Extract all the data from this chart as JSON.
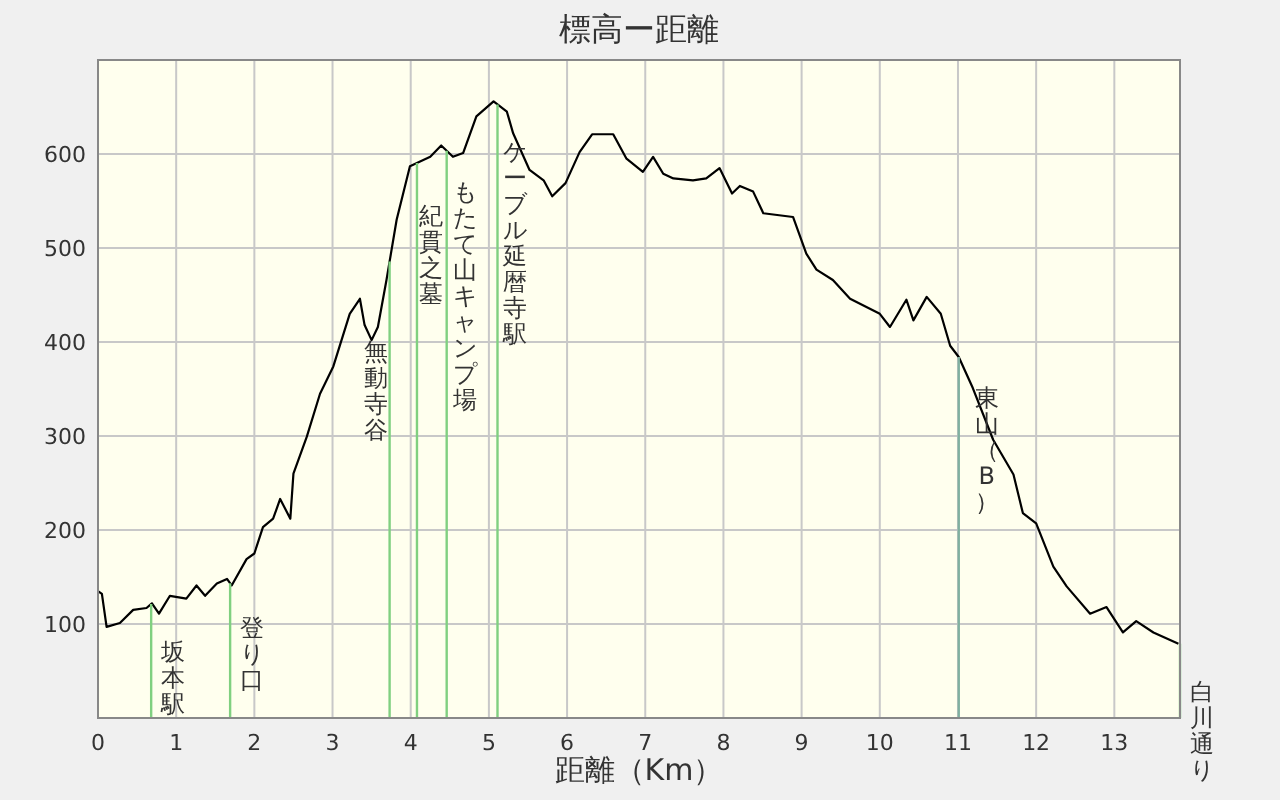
{
  "chart_data": {
    "type": "line",
    "title": "標高ー距離",
    "xlabel": "距離（Km）",
    "xlim": [
      0,
      13.84
    ],
    "ylim": [
      0,
      700
    ],
    "xticks": [
      0,
      1,
      2,
      3,
      4,
      5,
      6,
      7,
      8,
      9,
      10,
      11,
      12,
      13
    ],
    "yticks": [
      {
        "value": 0,
        "label": null
      },
      100,
      200,
      300,
      400,
      500,
      600
    ],
    "grid": true,
    "line_style": "solid",
    "series": [
      {
        "color": "#000000",
        "x": [
          0,
          0.05,
          0.11,
          0.28,
          0.45,
          0.62,
          0.69,
          0.78,
          0.92,
          1.13,
          1.26,
          1.37,
          1.52,
          1.65,
          1.71,
          1.9,
          2.0,
          2.11,
          2.24,
          2.33,
          2.46,
          2.5,
          2.67,
          2.84,
          3.01,
          3.22,
          3.35,
          3.41,
          3.5,
          3.58,
          3.69,
          3.82,
          3.99,
          4.12,
          4.25,
          4.39,
          4.54,
          4.67,
          4.84,
          5.06,
          5.23,
          5.31,
          5.52,
          5.7,
          5.81,
          5.98,
          6.16,
          6.32,
          6.59,
          6.76,
          6.97,
          7.1,
          7.23,
          7.36,
          7.61,
          7.78,
          7.95,
          8.11,
          8.21,
          8.38,
          8.51,
          8.89,
          9.06,
          9.19,
          9.4,
          9.62,
          10.0,
          10.13,
          10.34,
          10.43,
          10.6,
          10.78,
          10.9,
          11.01,
          11.19,
          11.45,
          11.71,
          11.83,
          12.0,
          12.22,
          12.39,
          12.69,
          12.9,
          13.11,
          13.28,
          13.5,
          13.82
        ],
        "values": [
          135,
          132,
          97,
          101,
          115,
          117,
          122,
          111,
          130,
          127,
          141,
          130,
          143,
          148,
          141,
          169,
          175,
          203,
          212,
          233,
          212,
          260,
          299,
          345,
          374,
          430,
          446,
          418,
          402,
          416,
          466,
          530,
          587,
          592,
          597,
          609,
          597,
          601,
          640,
          656,
          645,
          622,
          583,
          572,
          555,
          569,
          602,
          621,
          621,
          595,
          581,
          597,
          579,
          574,
          572,
          574,
          585,
          558,
          566,
          560,
          537,
          533,
          494,
          477,
          466,
          446,
          430,
          416,
          445,
          423,
          448,
          430,
          396,
          384,
          351,
          296,
          259,
          218,
          207,
          161,
          140,
          111,
          118,
          91,
          103,
          91,
          79
        ]
      }
    ],
    "ref_lines": [
      {
        "axis": "x",
        "value": 0.68,
        "label": "坂本駅",
        "color": "#80d080"
      },
      {
        "axis": "x",
        "value": 1.69,
        "label": "登り口",
        "color": "#80d080"
      },
      {
        "axis": "x",
        "value": 3.73,
        "label": "無動寺谷",
        "color": "#80d080"
      },
      {
        "axis": "x",
        "value": 4.08,
        "label": "紀貫之墓",
        "color": "#80d080"
      },
      {
        "axis": "x",
        "value": 4.46,
        "label": "もたて山キャンプ場",
        "color": "#80d080"
      },
      {
        "axis": "x",
        "value": 5.11,
        "label": "ケーブル延暦寺駅",
        "color": "#80d080"
      },
      {
        "axis": "x",
        "value": 11.01,
        "label": "東山（B）",
        "color": "#80b0a0"
      },
      {
        "axis": "x",
        "value": 13.84,
        "label": "白川通り",
        "color": "#80d080"
      }
    ]
  }
}
